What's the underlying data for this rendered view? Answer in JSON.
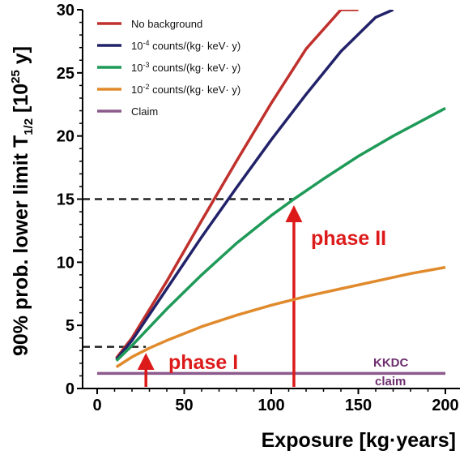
{
  "chart_data": {
    "type": "line",
    "xlabel": "Exposure [kg·years]",
    "ylabel_main": "90% prob. lower limit T",
    "ylabel_sub": "1/2",
    "ylabel_unit": "[10",
    "ylabel_exp": "25",
    "ylabel_end": " y]",
    "xlim": [
      0,
      200
    ],
    "ylim": [
      0,
      30
    ],
    "xticks": [
      0,
      50,
      100,
      150,
      200
    ],
    "yticks": [
      0,
      5,
      10,
      15,
      20,
      25,
      30
    ],
    "grid": false,
    "legend_position": "top-left",
    "series": [
      {
        "name": "No background",
        "color": "#c0302c",
        "x": [
          11,
          20,
          40,
          60,
          80,
          100,
          120,
          140,
          150
        ],
        "y": [
          2.4,
          4.0,
          8.5,
          13.3,
          18.0,
          22.6,
          26.9,
          30.0,
          30.0
        ]
      },
      {
        "name_pre": "10",
        "name_exp": "-4",
        "name_post": " counts/(kg· keV· y)",
        "color": "#22226a",
        "x": [
          11,
          20,
          40,
          60,
          80,
          100,
          120,
          140,
          160,
          170
        ],
        "y": [
          2.3,
          3.8,
          7.9,
          12.0,
          15.9,
          19.7,
          23.3,
          26.7,
          29.4,
          30.0
        ]
      },
      {
        "name_pre": "10",
        "name_exp": "-3",
        "name_post": " counts/(kg· keV· y)",
        "color": "#1f9a58",
        "x": [
          11,
          20,
          40,
          60,
          80,
          100,
          113,
          130,
          150,
          170,
          200
        ],
        "y": [
          2.2,
          3.4,
          6.3,
          9.0,
          11.5,
          13.7,
          15.0,
          16.6,
          18.4,
          20.0,
          22.2
        ]
      },
      {
        "name_pre": "10",
        "name_exp": "-2",
        "name_post": " counts/(kg· keV· y)",
        "color": "#e08a2c",
        "x": [
          11,
          20,
          30,
          40,
          60,
          80,
          100,
          120,
          140,
          160,
          180,
          200
        ],
        "y": [
          1.7,
          2.5,
          3.2,
          3.8,
          4.9,
          5.8,
          6.6,
          7.3,
          7.9,
          8.5,
          9.1,
          9.6
        ]
      },
      {
        "name": "Claim",
        "color": "#8c5a8c",
        "x": [
          0,
          200
        ],
        "y": [
          1.2,
          1.2
        ]
      }
    ],
    "guides": [
      {
        "label": "phase I",
        "x": 28,
        "y": 3.3,
        "color": "#dd1a1a"
      },
      {
        "label": "phase II",
        "x": 113,
        "y": 15,
        "color": "#dd1a1a"
      }
    ],
    "claim_annotation": [
      "KKDC",
      "claim"
    ],
    "claim_color": "#6e2f6e"
  }
}
